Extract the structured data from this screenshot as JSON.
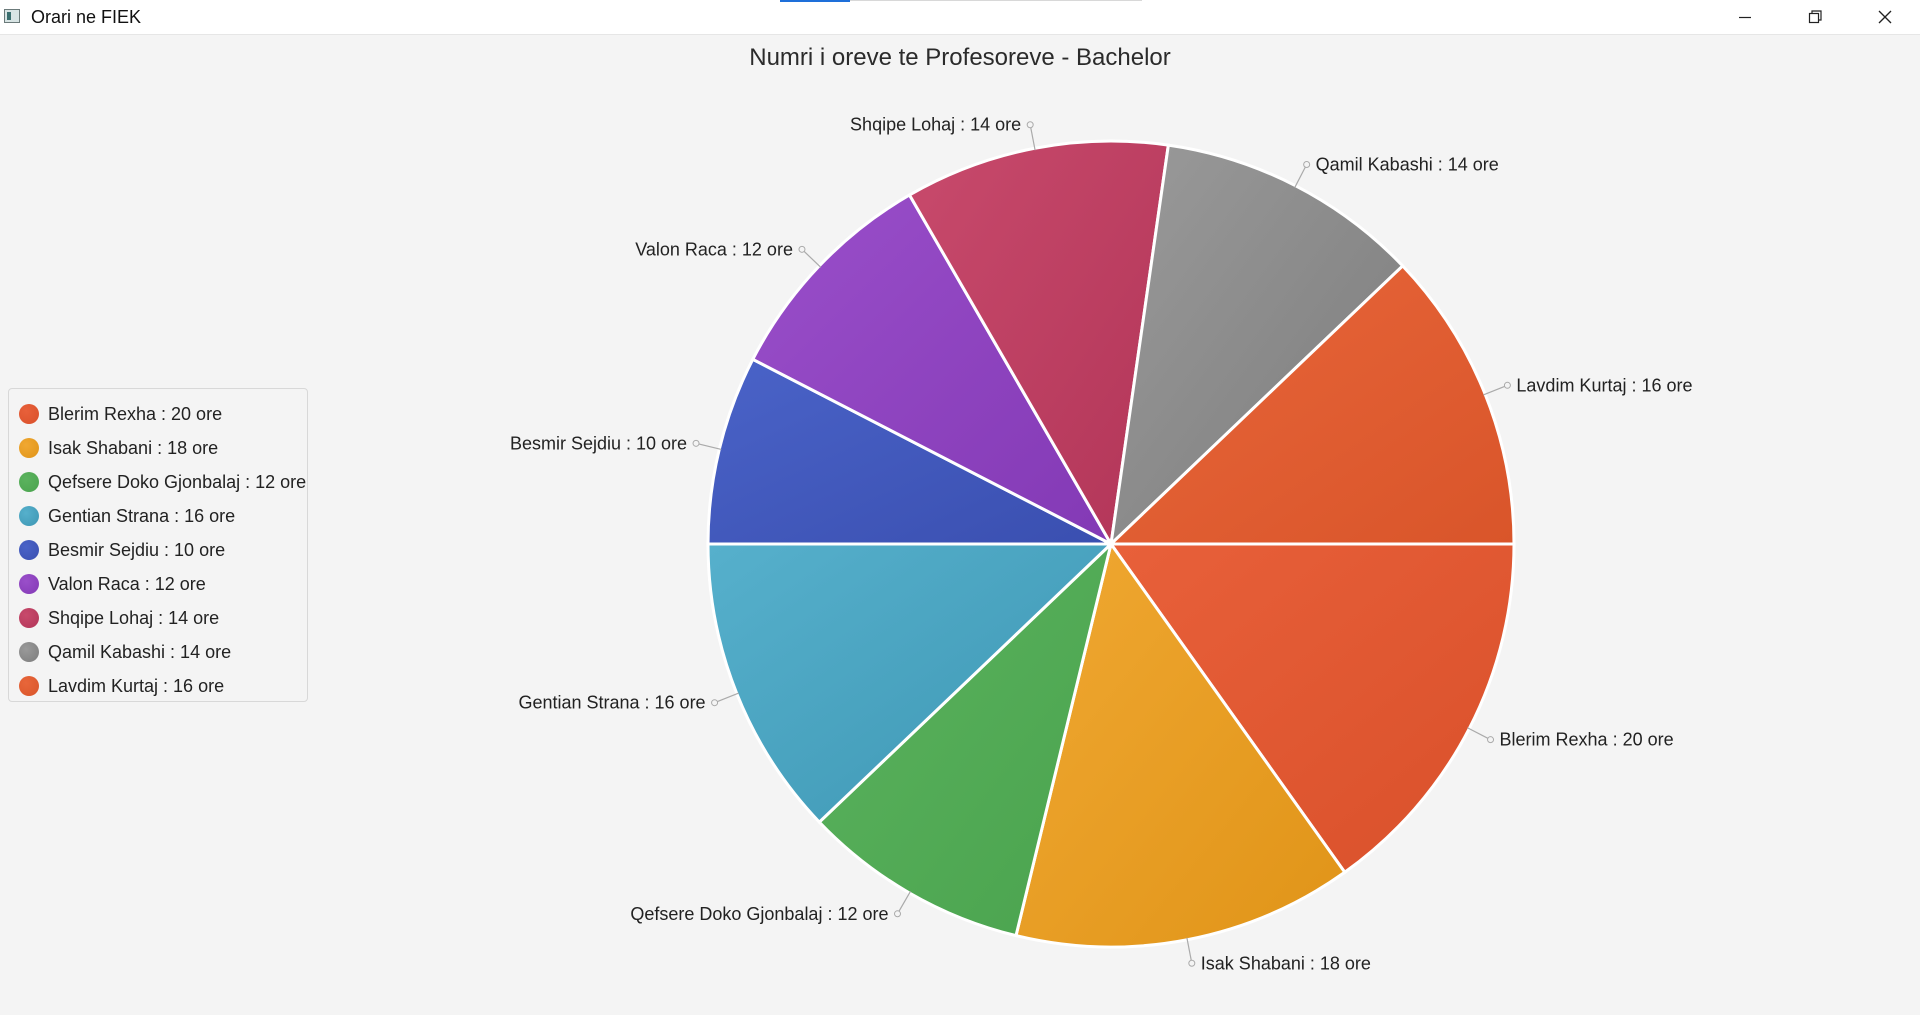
{
  "window": {
    "title": "Orari ne FIEK",
    "minimize_icon": "minimize-icon",
    "maximize_icon": "restore-icon",
    "close_icon": "close-icon"
  },
  "chart_data": {
    "type": "pie",
    "title": "Numri i oreve te Profesoreve - Bachelor",
    "start_angle_deg": 0,
    "direction": "clockwise",
    "legend_position": "left",
    "slices": [
      {
        "label": "Blerim Rexha : 20 ore",
        "name": "Blerim Rexha",
        "value": 20,
        "color": "#e8603a",
        "color2": "#d9502a"
      },
      {
        "label": "Isak Shabani : 18 ore",
        "name": "Isak Shabani",
        "value": 18,
        "color": "#f0a832",
        "color2": "#e09418"
      },
      {
        "label": "Qefsere Doko Gjonbalaj : 12 ore",
        "name": "Qefsere Doko Gjonbalaj",
        "value": 12,
        "color": "#5bb35e",
        "color2": "#4aa34e"
      },
      {
        "label": "Gentian Strana : 16 ore",
        "name": "Gentian Strana",
        "value": 16,
        "color": "#56b0cc",
        "color2": "#3d96b3"
      },
      {
        "label": "Besmir Sejdiu : 10 ore",
        "name": "Besmir Sejdiu",
        "value": 10,
        "color": "#4a63c8",
        "color2": "#3a4fb0"
      },
      {
        "label": "Valon Raca : 12 ore",
        "name": "Valon Raca",
        "value": 12,
        "color": "#9a4fca",
        "color2": "#8339b5"
      },
      {
        "label": "Shqipe Lohaj : 14 ore",
        "name": "Shqipe Lohaj",
        "value": 14,
        "color": "#c84a6c",
        "color2": "#b23558"
      },
      {
        "label": "Qamil Kabashi : 14 ore",
        "name": "Qamil Kabashi",
        "value": 14,
        "color": "#9a9a9a",
        "color2": "#7c7c7c"
      },
      {
        "label": "Lavdim Kurtaj : 16 ore",
        "name": "Lavdim Kurtaj",
        "value": 16,
        "color": "#e8663a",
        "color2": "#d9552a"
      }
    ]
  }
}
